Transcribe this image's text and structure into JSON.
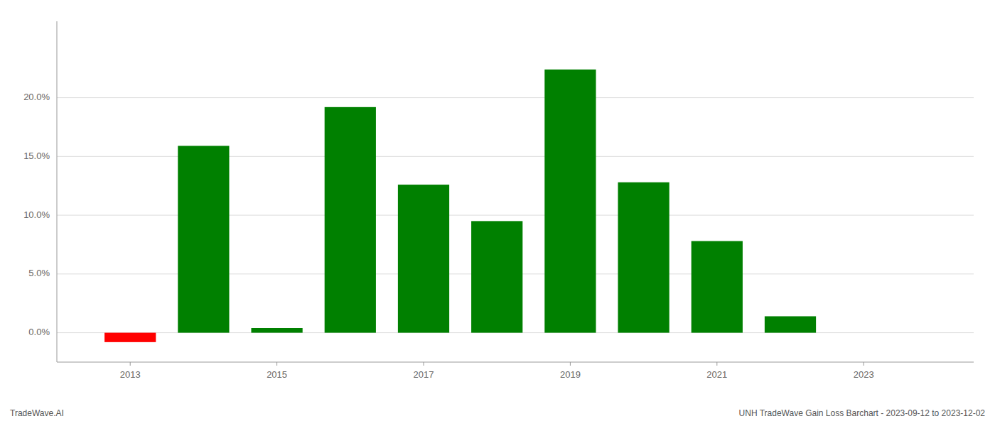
{
  "chart_data": {
    "type": "bar",
    "x": [
      2013,
      2014,
      2015,
      2016,
      2017,
      2018,
      2019,
      2020,
      2021,
      2022,
      2023
    ],
    "values": [
      -0.008,
      0.159,
      0.004,
      0.192,
      0.126,
      0.095,
      0.224,
      0.128,
      0.078,
      0.014,
      0.0
    ],
    "colors": [
      "#ff0000",
      "#008000",
      "#008000",
      "#008000",
      "#008000",
      "#008000",
      "#008000",
      "#008000",
      "#008000",
      "#008000",
      "#008000"
    ],
    "xlim": [
      2012.0,
      2024.5
    ],
    "xticks": [
      2013,
      2015,
      2017,
      2019,
      2021,
      2023
    ],
    "ylim": [
      -0.025,
      0.265
    ],
    "yticks": [
      {
        "value": 0.0,
        "label": "0.0%"
      },
      {
        "value": 0.05,
        "label": "5.0%"
      },
      {
        "value": 0.1,
        "label": "10.0%"
      },
      {
        "value": 0.15,
        "label": "15.0%"
      },
      {
        "value": 0.2,
        "label": "20.0%"
      }
    ],
    "grid": true,
    "annotations": [
      "TradeWave.AI",
      "UNH TradeWave Gain Loss Barchart - 2023-09-12 to 2023-12-02"
    ]
  }
}
